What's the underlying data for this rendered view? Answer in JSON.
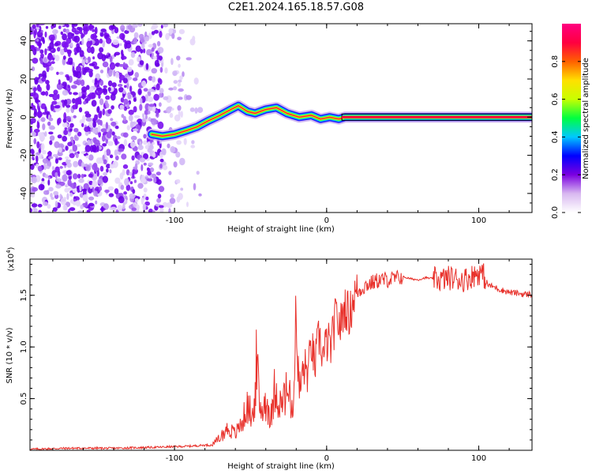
{
  "title": "C2E1.2024.165.18.57.G08",
  "chart_data": [
    {
      "type": "heatmap",
      "xlabel": "Height of straight line (km)",
      "ylabel": "Frequency (Hz)",
      "xlim": [
        -195,
        135
      ],
      "ylim": [
        -50,
        49
      ],
      "xticks": [
        -100,
        0,
        100
      ],
      "xtick_labels": [
        "-100",
        "0",
        "100"
      ],
      "yticks": [
        -40,
        -20,
        0,
        20,
        40
      ],
      "ytick_labels": [
        "-40",
        "-20",
        "0",
        "20",
        "40"
      ],
      "ridge": {
        "x": [
          -115,
          -108,
          -100,
          -92,
          -85,
          -78,
          -70,
          -63,
          -58,
          -52,
          -47,
          -40,
          -33,
          -26,
          -18,
          -10,
          -4,
          2,
          8,
          12,
          30,
          60,
          90,
          120,
          135
        ],
        "y": [
          -9,
          -10,
          -9,
          -7,
          -5,
          -2,
          1,
          4,
          6,
          3,
          2,
          4,
          5,
          2,
          0,
          1,
          -1,
          0,
          -1,
          0,
          0,
          0,
          0,
          0,
          0
        ]
      },
      "colorbar": {
        "label": "Normalized spectral amplitude",
        "ticks": [
          0.0,
          0.2,
          0.4,
          0.6,
          0.8
        ],
        "tick_labels": [
          "0.0",
          "0.2",
          "0.4",
          "0.6",
          "0.8"
        ],
        "range": [
          0,
          1
        ],
        "colors": [
          "#ffffff",
          "#d8b8f0",
          "#7b00e0",
          "#0000ff",
          "#00c8ff",
          "#00ff40",
          "#c8ff00",
          "#ffe000",
          "#ff6000",
          "#ff0040",
          "#ff0080"
        ]
      }
    },
    {
      "type": "line",
      "xlabel": "Height of straight line (km)",
      "ylabel": "SNR (10 * v/v)",
      "y_multiplier_label": "(x10",
      "y_multiplier_exp": "4",
      "y_multiplier_close": ")",
      "xlim": [
        -195,
        135
      ],
      "ylim": [
        0,
        1.85
      ],
      "xticks": [
        -100,
        0,
        100
      ],
      "xtick_labels": [
        "-100",
        "0",
        "100"
      ],
      "yticks": [
        0.5,
        1.0,
        1.5
      ],
      "ytick_labels": [
        "0.5",
        "1.0",
        "1.5"
      ],
      "color": "#e8302a",
      "series": [
        {
          "x": [
            -195,
            -170,
            -140,
            -110,
            -90,
            -80,
            -75,
            -70,
            -65,
            -60,
            -56,
            -52,
            -48,
            -46,
            -44,
            -40,
            -36,
            -34,
            -30,
            -26,
            -22,
            -20,
            -18,
            -15,
            -12,
            -10,
            -8,
            -5,
            -2,
            0,
            3,
            6,
            9,
            12,
            15,
            18,
            22,
            26,
            30,
            35,
            40,
            45,
            50,
            55,
            60,
            65,
            70,
            75,
            80,
            85,
            90,
            95,
            100,
            103,
            106,
            110,
            115,
            120,
            125,
            130,
            135
          ],
          "y": [
            0.01,
            0.02,
            0.02,
            0.03,
            0.04,
            0.05,
            0.05,
            0.12,
            0.2,
            0.15,
            0.25,
            0.4,
            0.3,
            0.85,
            0.35,
            0.45,
            0.3,
            0.6,
            0.4,
            0.55,
            0.35,
            1.2,
            0.55,
            0.8,
            0.75,
            1.05,
            0.8,
            1.1,
            0.9,
            1.05,
            1.0,
            1.3,
            1.2,
            1.4,
            1.3,
            1.5,
            1.55,
            1.6,
            1.62,
            1.65,
            1.65,
            1.66,
            1.68,
            1.66,
            1.65,
            1.67,
            1.66,
            1.65,
            1.67,
            1.66,
            1.65,
            1.68,
            1.72,
            1.7,
            1.6,
            1.58,
            1.55,
            1.53,
            1.52,
            1.51,
            1.51
          ]
        }
      ]
    }
  ]
}
